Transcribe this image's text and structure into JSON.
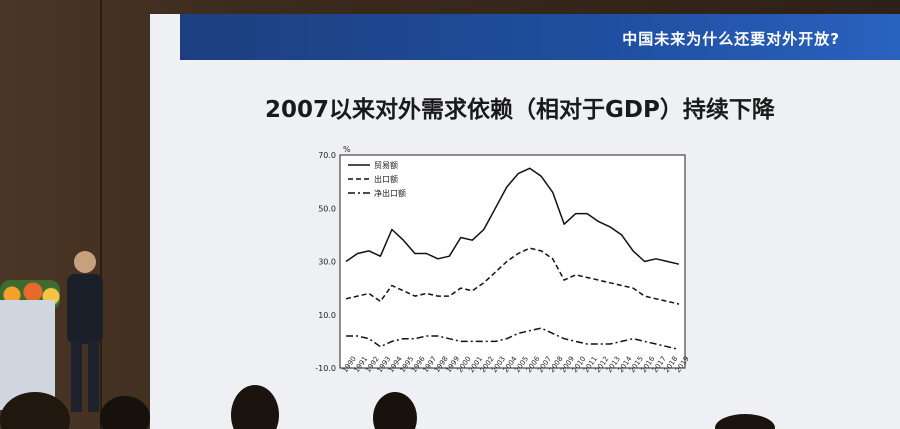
{
  "banner": {
    "title": "中国未来为什么还要对外开放?"
  },
  "slide": {
    "title": "2007以来对外需求依赖（相对于GDP）持续下降"
  },
  "chart_data": {
    "type": "line",
    "unit_label": "%",
    "ylim": [
      -10,
      70
    ],
    "yticks": [
      "70.0",
      "50.0",
      "30.0",
      "10.0",
      "-10.0"
    ],
    "x": [
      "1990",
      "1991",
      "1992",
      "1993",
      "1994",
      "1995",
      "1996",
      "1997",
      "1998",
      "1999",
      "2000",
      "2001",
      "2002",
      "2003",
      "2004",
      "2005",
      "2006",
      "2007",
      "2008",
      "2009",
      "2010",
      "2011",
      "2012",
      "2013",
      "2014",
      "2015",
      "2016",
      "2017",
      "2018",
      "2019"
    ],
    "legend_position": "top-left",
    "series": [
      {
        "name": "贸易额",
        "style": "solid",
        "values": [
          30,
          33,
          34,
          32,
          42,
          38,
          33,
          33,
          31,
          32,
          39,
          38,
          42,
          50,
          58,
          63,
          65,
          62,
          56,
          44,
          48,
          48,
          45,
          43,
          40,
          34,
          30,
          31,
          30,
          29
        ]
      },
      {
        "name": "出口额",
        "style": "dashed",
        "values": [
          16,
          17,
          18,
          15,
          21,
          19,
          17,
          18,
          17,
          17,
          20,
          19,
          22,
          26,
          30,
          33,
          35,
          34,
          31,
          23,
          25,
          24,
          23,
          22,
          21,
          20,
          17,
          16,
          15,
          14
        ]
      },
      {
        "name": "净出口额",
        "style": "dashdot",
        "values": [
          2,
          2,
          1,
          -2,
          0,
          1,
          1,
          2,
          2,
          1,
          0,
          0,
          0,
          0,
          1,
          3,
          4,
          5,
          3,
          1,
          0,
          -1,
          -1,
          -1,
          0,
          1,
          0,
          -1,
          -2,
          -3
        ]
      }
    ]
  }
}
